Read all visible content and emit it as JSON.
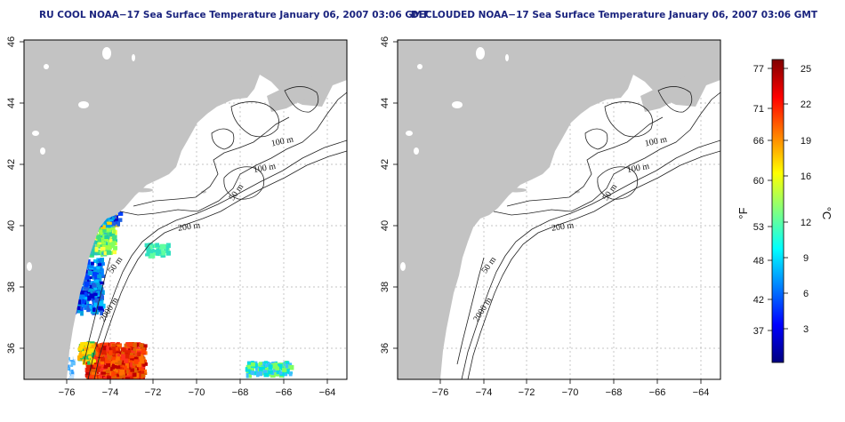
{
  "titles": {
    "left": "RU COOL NOAA−17 Sea Surface Temperature January 06, 2007 03:06 GMT",
    "right": "DECLOUDED NOAA−17 Sea Surface Temperature January 06, 2007 03:06 GMT"
  },
  "map_axes": {
    "lon_ticks": [
      "−76",
      "−74",
      "−72",
      "−70",
      "−68",
      "−66",
      "−64"
    ],
    "lat_ticks": [
      "36",
      "38",
      "40",
      "42",
      "44",
      "46"
    ]
  },
  "contour_labels": {
    "left": [
      "100 m",
      "100 m",
      "50 m",
      "200 m",
      "50 m",
      "2000 m"
    ],
    "right": [
      "100 m",
      "100 m",
      "50 m",
      "200 m",
      "50 m",
      "2000 m"
    ]
  },
  "colorbar": {
    "fahrenheit_ticks": [
      "77",
      "71",
      "66",
      "60",
      "53",
      "48",
      "42",
      "37"
    ],
    "celsius_ticks": [
      "25",
      "22",
      "19",
      "16",
      "12",
      "9",
      "6",
      "3"
    ],
    "fahrenheit_unit": "°F",
    "celsius_unit": "°C",
    "stops": [
      "#00007f",
      "#0000ff",
      "#0080ff",
      "#00ffff",
      "#80ff80",
      "#ffff00",
      "#ff8000",
      "#ff0000",
      "#7f0000"
    ]
  },
  "colors": {
    "land": "#c3c3c3",
    "ocean": "#ffffff",
    "contour": "#222222",
    "grid": "#b0b0b0",
    "title": "#1a237e"
  }
}
